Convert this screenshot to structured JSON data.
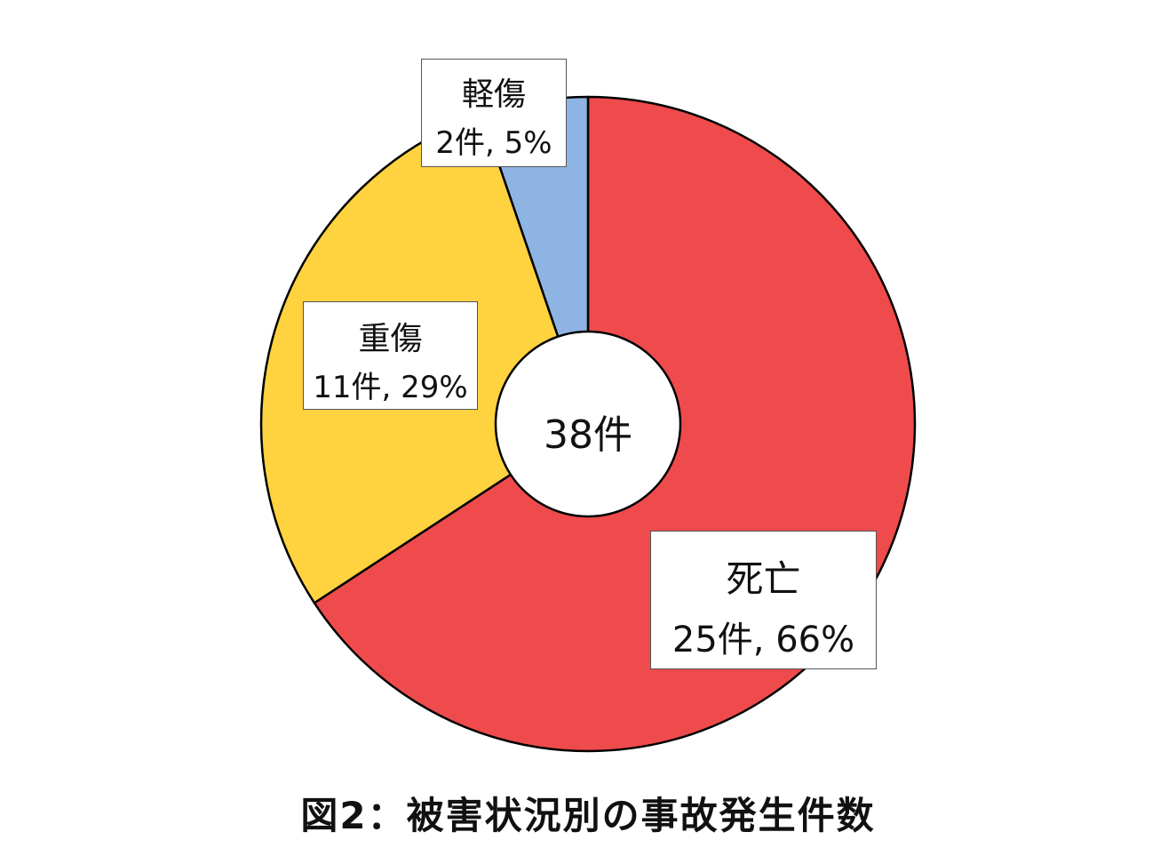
{
  "chart_data": {
    "type": "pie",
    "style": "donut",
    "title": "図2：被害状況別の事故発生件数",
    "center_label": "38件",
    "total": 38,
    "slices": [
      {
        "name": "死亡",
        "value": 25,
        "percent": 66,
        "value_label": "25件, 66%",
        "color": "#ef4b4c"
      },
      {
        "name": "重傷",
        "value": 11,
        "percent": 29,
        "value_label": "11件, 29%",
        "color": "#ffd23f"
      },
      {
        "name": "軽傷",
        "value": 2,
        "percent": 5,
        "value_label": "2件, 5%",
        "color": "#8eb4e3"
      }
    ],
    "legend": "none",
    "start": "12 o'clock, clockwise"
  }
}
